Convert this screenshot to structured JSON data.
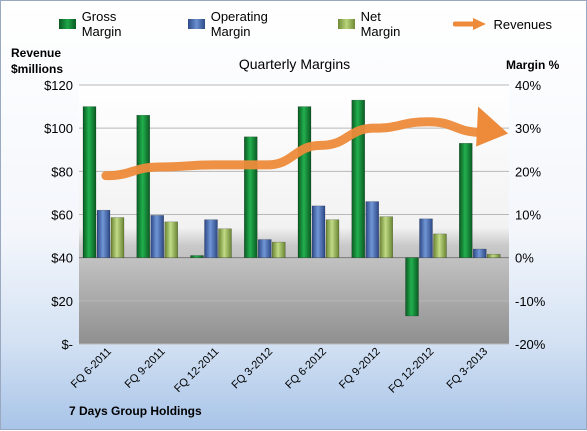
{
  "chart_data": {
    "type": "bar",
    "title": "Quarterly Margins",
    "source_label": "7 Days Group Holdings",
    "categories": [
      "FQ 6-2011",
      "FQ 9-2011",
      "FQ 12-2011",
      "FQ 3-2012",
      "FQ 6-2012",
      "FQ 9-2012",
      "FQ 12-2012",
      "FQ 3-2013"
    ],
    "left_axis": {
      "label": "Revenue\n$millions",
      "ticks": [
        "$120",
        "$100",
        "$80",
        "$60",
        "$40",
        "$20",
        "$-"
      ],
      "range": [
        0,
        120
      ]
    },
    "right_axis": {
      "label": "Margin %",
      "ticks": [
        "40%",
        "30%",
        "20%",
        "10%",
        "0%",
        "-10%",
        "-20%"
      ],
      "range": [
        -20,
        40
      ]
    },
    "legend_position": "top",
    "series": [
      {
        "name": "Gross Margin",
        "color": "#1a8a3a",
        "axis": "right",
        "values": [
          35,
          33,
          0.5,
          28,
          35,
          36.5,
          -13.5,
          26.5
        ]
      },
      {
        "name": "Operating Margin",
        "color": "#4a6fb5",
        "axis": "right",
        "values": [
          11,
          9.8,
          8.8,
          4.2,
          12,
          13,
          9,
          2
        ]
      },
      {
        "name": "Net Margin",
        "color": "#9bbb59",
        "axis": "right",
        "values": [
          9.3,
          8.3,
          6.7,
          3.6,
          8.8,
          9.5,
          5.5,
          0.8
        ]
      }
    ],
    "line_series": {
      "name": "Revenues",
      "color": "#ed8b3b",
      "axis": "left",
      "values": [
        78,
        82,
        83,
        83,
        92,
        100,
        103,
        98
      ]
    }
  }
}
